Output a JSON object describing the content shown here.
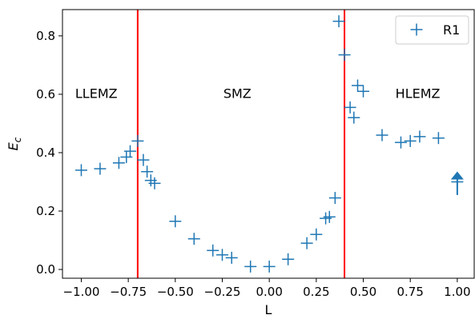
{
  "chart_data": {
    "type": "scatter",
    "xlabel": "L",
    "ylabel_main": "E",
    "ylabel_sub": "c",
    "xlim": [
      -1.1,
      1.09
    ],
    "ylim": [
      -0.03,
      0.89
    ],
    "xticks": [
      -1.0,
      -0.75,
      -0.5,
      -0.25,
      0.0,
      0.25,
      0.5,
      0.75,
      1.0
    ],
    "xtick_labels": [
      "−1.00",
      "−0.75",
      "−0.50",
      "−0.25",
      "0.00",
      "0.25",
      "0.50",
      "0.75",
      "1.00"
    ],
    "yticks": [
      0.0,
      0.2,
      0.4,
      0.6,
      0.8
    ],
    "ytick_labels": [
      "0.0",
      "0.2",
      "0.4",
      "0.6",
      "0.8"
    ],
    "grid": false,
    "legend_position": "top-right",
    "series": [
      {
        "name": "R1",
        "color": "#1f77b4",
        "marker": "plus",
        "x": [
          -1.0,
          -0.9,
          -0.8,
          -0.76,
          -0.74,
          -0.7,
          -0.67,
          -0.65,
          -0.63,
          -0.61,
          -0.5,
          -0.4,
          -0.3,
          -0.25,
          -0.2,
          -0.1,
          0.0,
          0.1,
          0.2,
          0.25,
          0.3,
          0.32,
          0.35,
          0.37,
          0.4,
          0.43,
          0.45,
          0.47,
          0.5,
          0.6,
          0.7,
          0.75,
          0.8,
          0.9,
          1.0
        ],
        "y": [
          0.34,
          0.345,
          0.365,
          0.385,
          0.405,
          0.44,
          0.375,
          0.335,
          0.305,
          0.295,
          0.165,
          0.105,
          0.065,
          0.05,
          0.04,
          0.01,
          0.01,
          0.035,
          0.09,
          0.12,
          0.175,
          0.18,
          0.245,
          0.85,
          0.735,
          0.555,
          0.52,
          0.63,
          0.61,
          0.46,
          0.435,
          0.44,
          0.455,
          0.45,
          0.3
        ]
      }
    ],
    "vertical_lines": [
      {
        "x": -0.7,
        "color": "#ff0000"
      },
      {
        "x": 0.4,
        "color": "#ff0000"
      }
    ],
    "annotations": [
      {
        "text": "LLEMZ",
        "x": -0.92,
        "y": 0.6
      },
      {
        "text": "SMZ",
        "x": -0.17,
        "y": 0.6
      },
      {
        "text": "HLEMZ",
        "x": 0.79,
        "y": 0.6
      }
    ],
    "arrow": {
      "x": 1.0,
      "y_start": 0.255,
      "y_end": 0.33,
      "color": "#1f77b4"
    }
  }
}
